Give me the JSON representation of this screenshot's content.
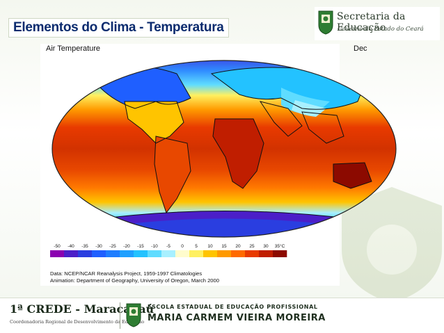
{
  "slide": {
    "title": "Elementos do Clima - Temperatura"
  },
  "header_logo": {
    "line1": "Secretaria da Educação",
    "line2": "Governo do Estado do Ceará",
    "icon": "ceara-coat-of-arms-icon"
  },
  "figure": {
    "left_label": "Air Temperature",
    "right_label": "Dec",
    "colorbar": {
      "ticks": [
        "-50",
        "-40",
        "-35",
        "-30",
        "-25",
        "-20",
        "-15",
        "-10",
        "-5",
        "0",
        "5",
        "10",
        "15",
        "20",
        "25",
        "30",
        "35°C"
      ],
      "colors": [
        "#8a00b0",
        "#4b1fc8",
        "#2a3ee0",
        "#1f5fff",
        "#1e7dff",
        "#1fa0ff",
        "#23c2ff",
        "#5fdcff",
        "#a8f0ff",
        "#fffccc",
        "#fff060",
        "#ffc400",
        "#ff9a00",
        "#ff6a00",
        "#e83a00",
        "#c01e00",
        "#8c0a00"
      ]
    },
    "credits_line1": "Data:  NCEP/NCAR Reanalysis Project, 1959-1997 Climatologies",
    "credits_line2": "Animation:  Department of Geography, University of Oregon, March 2000"
  },
  "footer": {
    "crede_title": "1ª CREDE - Maracanaú",
    "crede_subtitle": "Coordenadoria Regional de Desenvolvimento da Educação",
    "school_line1": "ESCOLA ESTADUAL DE EDUCAÇÃO PROFISSIONAL",
    "school_line2": "MARIA CARMEM VIEIRA MOREIRA",
    "icon": "ceara-coat-of-arms-icon"
  },
  "colors": {
    "title": "#0b2b6e",
    "footer_text": "#1f2f1f"
  }
}
